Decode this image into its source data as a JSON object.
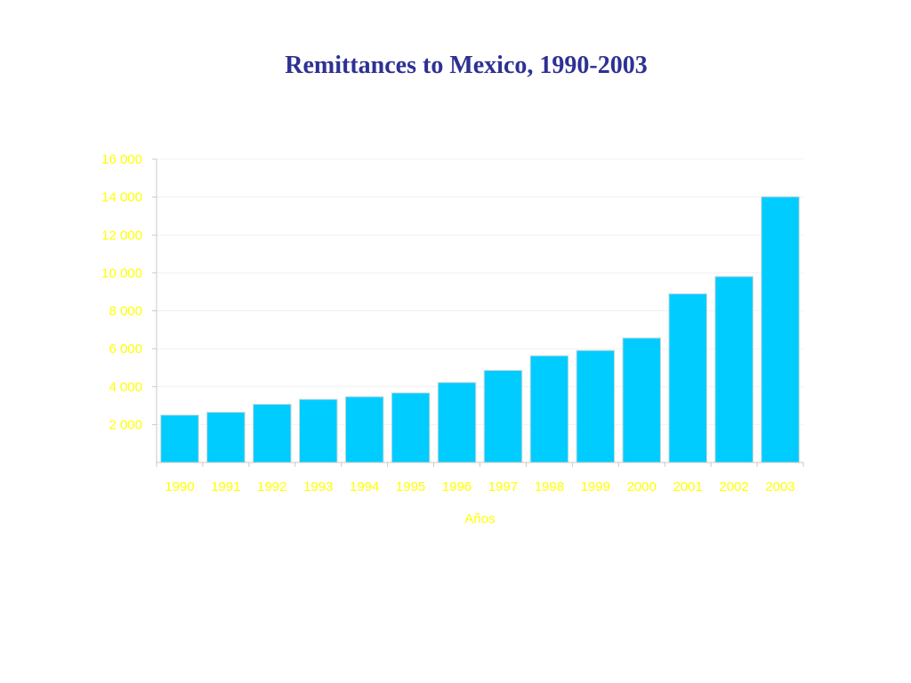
{
  "chart_data": {
    "type": "bar",
    "title": "Remittances to Mexico, 1990-2003",
    "xlabel": "Años",
    "ylabel": "",
    "categories": [
      "1990",
      "1991",
      "1992",
      "1993",
      "1994",
      "1995",
      "1996",
      "1997",
      "1998",
      "1999",
      "2000",
      "2001",
      "2002",
      "2003"
    ],
    "values": [
      2500,
      2650,
      3070,
      3330,
      3470,
      3670,
      4220,
      4860,
      5630,
      5910,
      6570,
      8900,
      9810,
      14020
    ],
    "ylim": [
      0,
      16000
    ],
    "yticks": [
      2000,
      4000,
      6000,
      8000,
      10000,
      12000,
      14000,
      16000
    ],
    "ytick_labels": [
      "2 000",
      "4 000",
      "6 000",
      "8 000",
      "10 000",
      "12 000",
      "14 000",
      "16 000"
    ],
    "grid": true,
    "legend": "none",
    "colors": {
      "bar": "#00ccff",
      "bar_edge": "#d8d8d8",
      "label": "#ffff00",
      "axis": "#c8c8c8",
      "grid": "#f0f0f0"
    }
  }
}
